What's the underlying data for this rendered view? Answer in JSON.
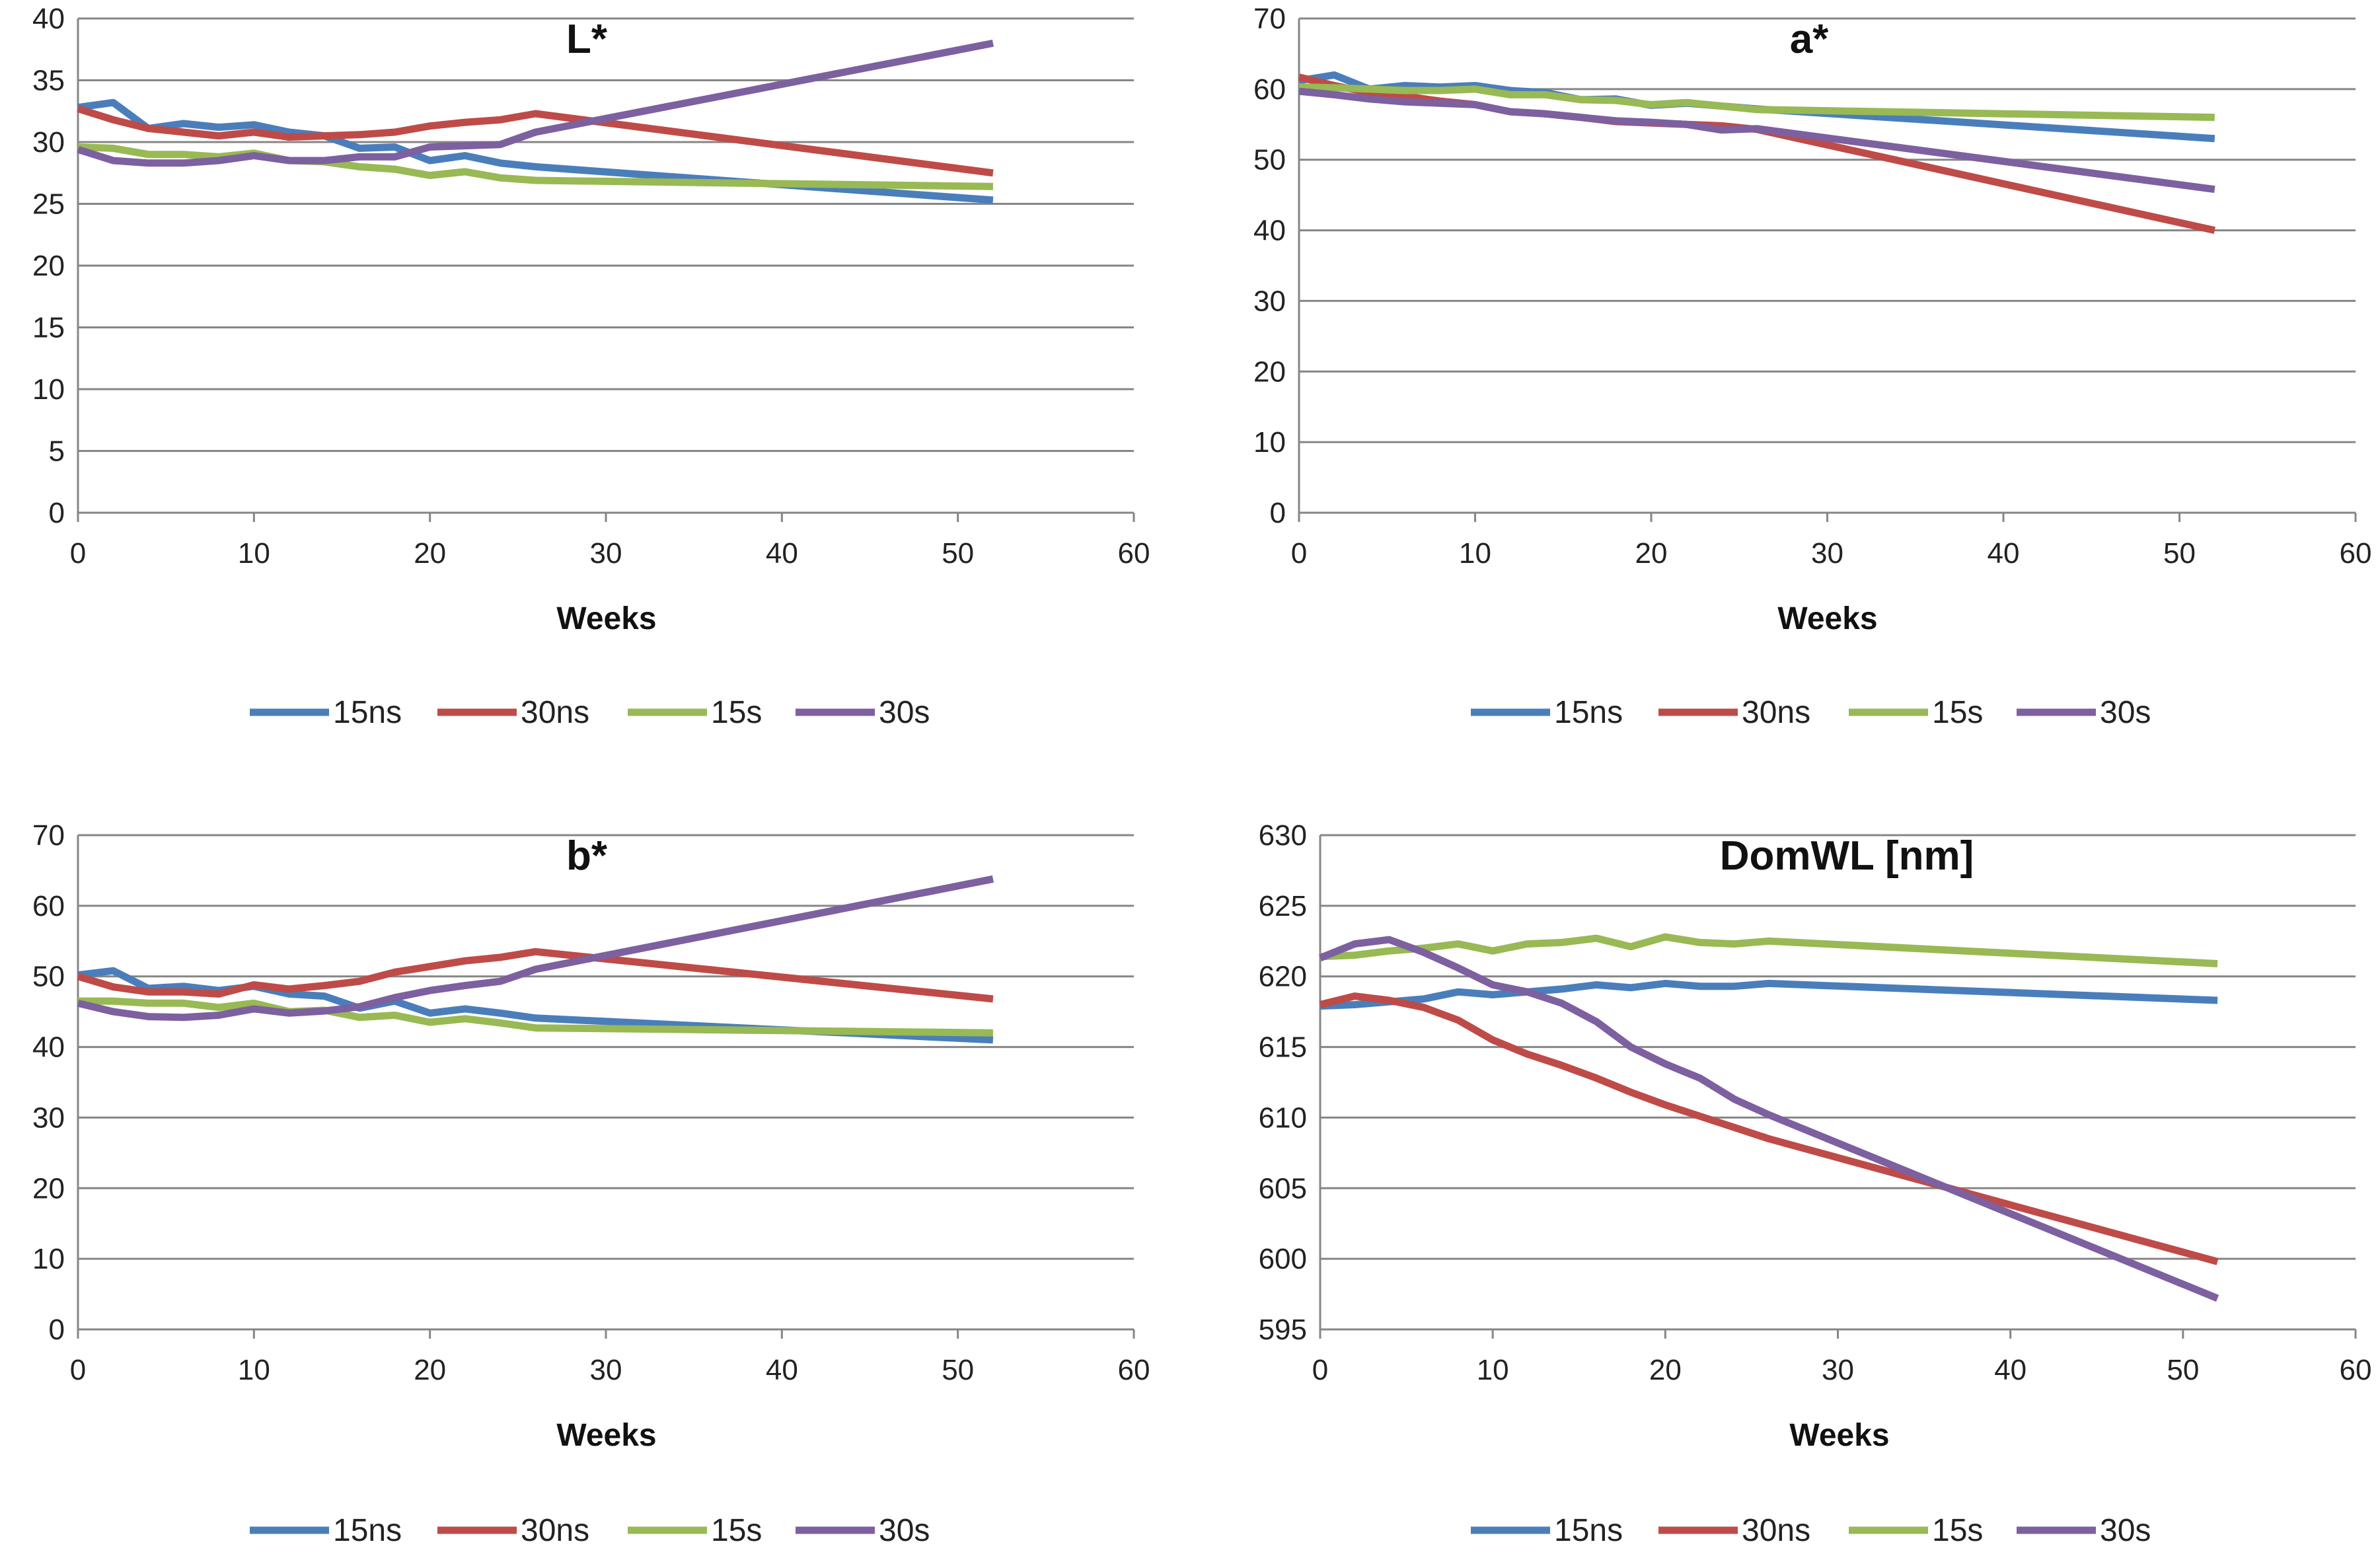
{
  "colors": {
    "15ns": "#4a7ebb",
    "30ns": "#be4b48",
    "15s": "#98b954",
    "30s": "#7d60a0",
    "grid": "#868686"
  },
  "chart_data": [
    {
      "type": "line",
      "title": "L*",
      "xlabel": "Weeks",
      "ylabel": "",
      "xlim": [
        0,
        60
      ],
      "ylim": [
        0,
        40
      ],
      "xticks": [
        0,
        10,
        20,
        30,
        40,
        50,
        60
      ],
      "yticks": [
        0,
        5,
        10,
        15,
        20,
        25,
        30,
        35,
        40
      ],
      "legend": "bottom",
      "series": [
        {
          "name": "15ns",
          "x": [
            0,
            2,
            4,
            6,
            8,
            10,
            12,
            14,
            16,
            18,
            20,
            22,
            24,
            26,
            52
          ],
          "y": [
            32.8,
            33.2,
            31.1,
            31.5,
            31.2,
            31.4,
            30.8,
            30.5,
            29.5,
            29.6,
            28.5,
            28.9,
            28.3,
            28.0,
            25.3
          ]
        },
        {
          "name": "30ns",
          "x": [
            0,
            2,
            4,
            6,
            8,
            10,
            12,
            14,
            16,
            18,
            20,
            22,
            24,
            26,
            52
          ],
          "y": [
            32.7,
            31.8,
            31.1,
            30.8,
            30.5,
            30.8,
            30.4,
            30.5,
            30.6,
            30.8,
            31.3,
            31.6,
            31.8,
            32.3,
            27.5
          ]
        },
        {
          "name": "15s",
          "x": [
            0,
            2,
            4,
            6,
            8,
            10,
            12,
            14,
            16,
            18,
            20,
            22,
            24,
            26,
            52
          ],
          "y": [
            29.6,
            29.5,
            29.0,
            29.0,
            28.8,
            29.1,
            28.5,
            28.4,
            28.0,
            27.8,
            27.3,
            27.6,
            27.1,
            26.9,
            26.4
          ]
        },
        {
          "name": "30s",
          "x": [
            0,
            2,
            4,
            6,
            8,
            10,
            12,
            14,
            16,
            18,
            20,
            22,
            24,
            26,
            52
          ],
          "y": [
            29.4,
            28.5,
            28.3,
            28.3,
            28.5,
            28.9,
            28.5,
            28.5,
            28.8,
            28.8,
            29.6,
            29.7,
            29.8,
            30.8,
            38.0
          ]
        }
      ]
    },
    {
      "type": "line",
      "title": "a*",
      "xlabel": "Weeks",
      "ylabel": "",
      "xlim": [
        0,
        60
      ],
      "ylim": [
        0,
        70
      ],
      "xticks": [
        0,
        10,
        20,
        30,
        40,
        50,
        60
      ],
      "yticks": [
        0,
        10,
        20,
        30,
        40,
        50,
        60,
        70
      ],
      "legend": "bottom",
      "series": [
        {
          "name": "15ns",
          "x": [
            0,
            2,
            4,
            6,
            8,
            10,
            12,
            14,
            16,
            18,
            20,
            22,
            24,
            26,
            52
          ],
          "y": [
            61.2,
            62.0,
            60.0,
            60.5,
            60.3,
            60.5,
            59.8,
            59.5,
            58.5,
            58.6,
            57.7,
            58.0,
            57.6,
            57.2,
            53.0
          ]
        },
        {
          "name": "30ns",
          "x": [
            0,
            2,
            4,
            6,
            8,
            10,
            12,
            14,
            16,
            18,
            20,
            22,
            24,
            26,
            52
          ],
          "y": [
            61.7,
            60.5,
            59.5,
            59.0,
            58.3,
            57.8,
            56.8,
            56.5,
            56.0,
            55.4,
            55.2,
            55.0,
            54.8,
            54.3,
            40.0
          ]
        },
        {
          "name": "15s",
          "x": [
            0,
            2,
            4,
            6,
            8,
            10,
            12,
            14,
            16,
            18,
            20,
            22,
            24,
            26,
            52
          ],
          "y": [
            60.3,
            60.2,
            60.0,
            59.8,
            59.8,
            60.0,
            59.2,
            59.2,
            58.5,
            58.4,
            57.8,
            58.1,
            57.6,
            57.1,
            56.0
          ]
        },
        {
          "name": "30s",
          "x": [
            0,
            2,
            4,
            6,
            8,
            10,
            12,
            14,
            16,
            18,
            20,
            22,
            24,
            26,
            52
          ],
          "y": [
            59.7,
            59.2,
            58.6,
            58.2,
            58.0,
            57.8,
            56.8,
            56.5,
            56.0,
            55.5,
            55.3,
            55.0,
            54.2,
            54.4,
            45.8
          ]
        }
      ]
    },
    {
      "type": "line",
      "title": "b*",
      "xlabel": "Weeks",
      "ylabel": "",
      "xlim": [
        0,
        60
      ],
      "ylim": [
        0,
        70
      ],
      "xticks": [
        0,
        10,
        20,
        30,
        40,
        50,
        60
      ],
      "yticks": [
        0,
        10,
        20,
        30,
        40,
        50,
        60,
        70
      ],
      "legend": "bottom",
      "series": [
        {
          "name": "15ns",
          "x": [
            0,
            2,
            4,
            6,
            8,
            10,
            12,
            14,
            16,
            18,
            20,
            22,
            24,
            26,
            52
          ],
          "y": [
            50.2,
            50.8,
            48.3,
            48.6,
            48.0,
            48.6,
            47.5,
            47.2,
            45.5,
            46.5,
            44.8,
            45.4,
            44.8,
            44.1,
            41.0
          ]
        },
        {
          "name": "30ns",
          "x": [
            0,
            2,
            4,
            6,
            8,
            10,
            12,
            14,
            16,
            18,
            20,
            22,
            24,
            26,
            52
          ],
          "y": [
            50.0,
            48.5,
            47.8,
            47.8,
            47.5,
            48.8,
            48.2,
            48.7,
            49.3,
            50.6,
            51.4,
            52.2,
            52.7,
            53.5,
            46.8
          ]
        },
        {
          "name": "15s",
          "x": [
            0,
            2,
            4,
            6,
            8,
            10,
            12,
            14,
            16,
            18,
            20,
            22,
            24,
            26,
            52
          ],
          "y": [
            46.5,
            46.5,
            46.2,
            46.2,
            45.6,
            46.2,
            45.0,
            45.2,
            44.2,
            44.5,
            43.5,
            44.0,
            43.4,
            42.7,
            42.0
          ]
        },
        {
          "name": "30s",
          "x": [
            0,
            2,
            4,
            6,
            8,
            10,
            12,
            14,
            16,
            18,
            20,
            22,
            24,
            26,
            52
          ],
          "y": [
            46.2,
            45.0,
            44.3,
            44.2,
            44.5,
            45.4,
            44.8,
            45.1,
            45.7,
            47.0,
            48.0,
            48.7,
            49.3,
            51.0,
            63.8
          ]
        }
      ]
    },
    {
      "type": "line",
      "title": "DomWL [nm]",
      "xlabel": "Weeks",
      "ylabel": "",
      "xlim": [
        0,
        60
      ],
      "ylim": [
        595,
        630
      ],
      "xticks": [
        0,
        10,
        20,
        30,
        40,
        50,
        60
      ],
      "yticks": [
        595,
        600,
        605,
        610,
        615,
        620,
        625,
        630
      ],
      "legend": "bottom",
      "series": [
        {
          "name": "15ns",
          "x": [
            0,
            2,
            4,
            6,
            8,
            10,
            12,
            14,
            16,
            18,
            20,
            22,
            24,
            26,
            52
          ],
          "y": [
            617.9,
            618.0,
            618.2,
            618.4,
            618.9,
            618.7,
            618.9,
            619.1,
            619.4,
            619.2,
            619.5,
            619.3,
            619.3,
            619.5,
            618.3
          ]
        },
        {
          "name": "30ns",
          "x": [
            0,
            2,
            4,
            6,
            8,
            10,
            12,
            14,
            16,
            18,
            20,
            22,
            24,
            26,
            52
          ],
          "y": [
            618.0,
            618.6,
            618.3,
            617.8,
            616.9,
            615.5,
            614.5,
            613.7,
            612.8,
            611.8,
            610.9,
            610.1,
            609.3,
            608.5,
            599.8
          ]
        },
        {
          "name": "15s",
          "x": [
            0,
            2,
            4,
            6,
            8,
            10,
            12,
            14,
            16,
            18,
            20,
            22,
            24,
            26,
            52
          ],
          "y": [
            621.4,
            621.5,
            621.8,
            622.0,
            622.3,
            621.8,
            622.3,
            622.4,
            622.7,
            622.1,
            622.8,
            622.4,
            622.3,
            622.5,
            620.9
          ]
        },
        {
          "name": "30s",
          "x": [
            0,
            2,
            4,
            6,
            8,
            10,
            12,
            14,
            16,
            18,
            20,
            22,
            24,
            26,
            52
          ],
          "y": [
            621.3,
            622.3,
            622.6,
            621.7,
            620.6,
            619.4,
            618.9,
            618.1,
            616.8,
            615.0,
            613.8,
            612.8,
            611.3,
            610.2,
            597.2
          ]
        }
      ]
    }
  ]
}
